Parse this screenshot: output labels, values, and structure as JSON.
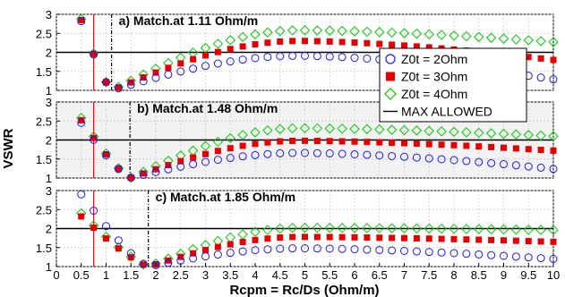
{
  "chart_data": {
    "type": "scatter",
    "xlabel": "Rcpm = Rc/Ds (Ohm/m)",
    "ylabel": "VSWR",
    "xlim": [
      0,
      10
    ],
    "x_ticks": [
      "0",
      "0.5",
      "1",
      "1.5",
      "2",
      "2.5",
      "3",
      "3.5",
      "4",
      "4.5",
      "5",
      "5.5",
      "6",
      "6.5",
      "7",
      "7.5",
      "8",
      "8.5",
      "9",
      "9.5",
      "10"
    ],
    "max_allowed_vswr": 2,
    "legend": {
      "placement": "right, over panel a",
      "entries": [
        {
          "label": "Z0t = 2Ohm",
          "marker": "circle",
          "color": "#1a1aff"
        },
        {
          "label": "Z0t = 3Ohm",
          "marker": "square",
          "color": "#e60000"
        },
        {
          "label": "Z0t = 4Ohm",
          "marker": "diamond",
          "color": "#00cc00"
        },
        {
          "label": "MAX ALLOWED",
          "marker": "line",
          "color": "#000000"
        }
      ]
    },
    "panels": [
      {
        "id": "a",
        "annotation": "a) Match.at 1.11 Ohm/m",
        "ylim": [
          1,
          3
        ],
        "y_ticks": [
          "1",
          "1.5",
          "2",
          "2.5",
          "3"
        ],
        "match_x": 1.11,
        "red_line_x": 0.75,
        "shaded": false,
        "series": [
          {
            "name": "Z0t = 2Ohm",
            "peak": 1.91,
            "end": 1.29,
            "first": 2.82
          },
          {
            "name": "Z0t = 3Ohm",
            "peak": 2.3,
            "end": 1.8,
            "first": 2.85
          },
          {
            "name": "Z0t = 4Ohm",
            "peak": 2.58,
            "end": 2.27,
            "first": 2.88
          }
        ]
      },
      {
        "id": "b",
        "annotation": "b) Match.at 1.48 Ohm/m",
        "ylim": [
          1,
          3
        ],
        "y_ticks": [
          "1",
          "1.5",
          "2",
          "2.5",
          "3"
        ],
        "match_x": 1.48,
        "red_line_x": 0.75,
        "shaded": true,
        "series": [
          {
            "name": "Z0t = 2Ohm",
            "peak": 1.66,
            "end": 1.24,
            "first": 2.45
          },
          {
            "name": "Z0t = 3Ohm",
            "peak": 1.98,
            "end": 1.72,
            "first": 2.52
          },
          {
            "name": "Z0t = 4Ohm",
            "peak": 2.31,
            "end": 2.1,
            "first": 2.58
          }
        ]
      },
      {
        "id": "c",
        "annotation": "c) Match.at 1.85 Ohm/m",
        "ylim": [
          1,
          3
        ],
        "y_ticks": [
          "1",
          "1.5",
          "2",
          "2.5",
          "3"
        ],
        "match_x": 1.85,
        "red_line_x": 0.75,
        "shaded": false,
        "series": [
          {
            "name": "Z0t = 2Ohm",
            "peak": 1.48,
            "end": 1.2,
            "first": 2.9
          },
          {
            "name": "Z0t = 3Ohm",
            "peak": 1.78,
            "end": 1.65,
            "first": 2.32
          },
          {
            "name": "Z0t = 4Ohm",
            "peak": 2.02,
            "end": 1.96,
            "first": 2.4
          }
        ]
      }
    ]
  }
}
